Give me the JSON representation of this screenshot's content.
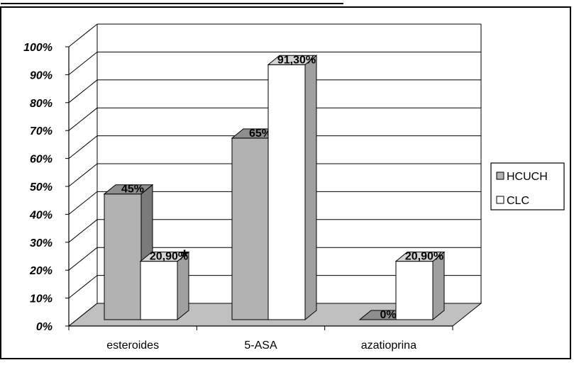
{
  "chart_data": {
    "type": "bar",
    "categories": [
      "esteroides",
      "5-ASA",
      "azatioprina"
    ],
    "series": [
      {
        "name": "HCUCH",
        "values": [
          45,
          65,
          0
        ],
        "labels": [
          "45%",
          "65%",
          "0%"
        ]
      },
      {
        "name": "CLC",
        "values": [
          20.9,
          91.3,
          20.9
        ],
        "labels": [
          "20,90%",
          "91,30%",
          "20,90%"
        ]
      }
    ],
    "ylim": [
      0,
      100
    ],
    "y_ticks": [
      "0%",
      "10%",
      "20%",
      "30%",
      "40%",
      "50%",
      "60%",
      "70%",
      "80%",
      "90%",
      "100%"
    ],
    "annotations": [
      "*"
    ],
    "legend_position": "right",
    "grid": true,
    "style": "3d-clustered-column",
    "colors": {
      "HCUCH": "#b2b2b2",
      "CLC": "#ffffff",
      "floor": "#c0c0c0",
      "side_shade": "#a0a0a0",
      "top_shade": "#d4d4d4"
    }
  }
}
